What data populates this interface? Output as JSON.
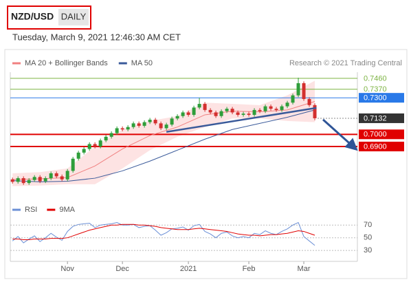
{
  "header": {
    "symbol": "NZD/USD",
    "period": "DAILY",
    "timestamp": "Tuesday, March 9, 2021 12:46:30 AM CET"
  },
  "chart_data": [
    {
      "type": "candlestick",
      "source": "Research © 2021 Trading Central",
      "categories": [
        null,
        null,
        null,
        null,
        null,
        null,
        null,
        null,
        null,
        null,
        "Nov",
        null,
        null,
        null,
        null,
        null,
        null,
        null,
        null,
        null,
        "Dec",
        null,
        null,
        null,
        null,
        null,
        null,
        null,
        null,
        null,
        null,
        null,
        "2021",
        null,
        null,
        null,
        null,
        null,
        null,
        null,
        null,
        null,
        null,
        "Feb",
        null,
        null,
        null,
        null,
        null,
        null,
        null,
        null,
        null,
        "Mar",
        null,
        null
      ],
      "open": [
        0.663,
        0.661,
        0.664,
        0.66,
        0.6625,
        0.665,
        0.6615,
        0.664,
        0.668,
        0.6655,
        0.663,
        0.67,
        0.68,
        0.685,
        0.688,
        0.692,
        0.69,
        0.695,
        0.698,
        0.701,
        0.705,
        0.704,
        0.706,
        0.709,
        0.707,
        0.71,
        0.712,
        0.709,
        0.705,
        0.708,
        0.713,
        0.715,
        0.718,
        0.716,
        0.722,
        0.725,
        0.72,
        0.718,
        0.715,
        0.719,
        0.721,
        0.718,
        0.716,
        0.717,
        0.716,
        0.72,
        0.719,
        0.723,
        0.721,
        0.72,
        0.723,
        0.726,
        0.732,
        0.742,
        0.729,
        0.724
      ],
      "high": [
        0.6645,
        0.6655,
        0.6655,
        0.664,
        0.6665,
        0.6665,
        0.6655,
        0.6695,
        0.6695,
        0.667,
        0.6715,
        0.6815,
        0.6865,
        0.6895,
        0.6935,
        0.6935,
        0.6965,
        0.6995,
        0.7025,
        0.7065,
        0.7065,
        0.7075,
        0.7105,
        0.7105,
        0.7115,
        0.7135,
        0.7135,
        0.7105,
        0.7095,
        0.7145,
        0.7165,
        0.7195,
        0.7195,
        0.7235,
        0.73,
        0.7265,
        0.7215,
        0.7195,
        0.7205,
        0.7225,
        0.7225,
        0.7195,
        0.7185,
        0.7185,
        0.7215,
        0.7215,
        0.7245,
        0.7245,
        0.7225,
        0.7245,
        0.7275,
        0.7335,
        0.7465,
        0.7435,
        0.7305,
        0.7255
      ],
      "low": [
        0.6595,
        0.6595,
        0.6585,
        0.6585,
        0.661,
        0.66,
        0.66,
        0.6625,
        0.664,
        0.6615,
        0.6615,
        0.6685,
        0.6785,
        0.6835,
        0.6865,
        0.6885,
        0.6885,
        0.6935,
        0.6965,
        0.6995,
        0.7025,
        0.7025,
        0.7045,
        0.7055,
        0.7055,
        0.7085,
        0.7075,
        0.7035,
        0.7035,
        0.7065,
        0.7115,
        0.7135,
        0.7145,
        0.7145,
        0.7205,
        0.7185,
        0.7165,
        0.7135,
        0.7135,
        0.7175,
        0.7165,
        0.7145,
        0.7145,
        0.7145,
        0.7145,
        0.7175,
        0.7175,
        0.7195,
        0.7185,
        0.7185,
        0.7215,
        0.7245,
        0.7305,
        0.7275,
        0.7225,
        0.7115
      ],
      "close": [
        0.661,
        0.664,
        0.66,
        0.6625,
        0.665,
        0.6615,
        0.664,
        0.668,
        0.6655,
        0.663,
        0.67,
        0.68,
        0.685,
        0.688,
        0.692,
        0.69,
        0.695,
        0.698,
        0.701,
        0.705,
        0.704,
        0.706,
        0.709,
        0.707,
        0.71,
        0.712,
        0.709,
        0.705,
        0.708,
        0.713,
        0.715,
        0.718,
        0.716,
        0.722,
        0.725,
        0.72,
        0.718,
        0.715,
        0.719,
        0.721,
        0.718,
        0.716,
        0.717,
        0.716,
        0.72,
        0.719,
        0.723,
        0.721,
        0.72,
        0.723,
        0.726,
        0.732,
        0.742,
        0.729,
        0.724,
        0.7132
      ],
      "colors": {
        "up": "#2e9e3a",
        "down": "#d32f2f"
      },
      "series": [
        {
          "name": "MA 20 + Bollinger Bands",
          "color": "#f08080",
          "band_color": "#fde3e3",
          "x": [
            0,
            5,
            10,
            15,
            20,
            25,
            30,
            35,
            40,
            45,
            50,
            55
          ],
          "values": [
            0.663,
            0.6635,
            0.6645,
            0.674,
            0.688,
            0.699,
            0.706,
            0.716,
            0.719,
            0.7185,
            0.72,
            0.727
          ],
          "upper": [
            0.668,
            0.669,
            0.672,
            0.69,
            0.704,
            0.711,
            0.715,
            0.726,
            0.725,
            0.724,
            0.732,
            0.744
          ],
          "lower": [
            0.6575,
            0.658,
            0.659,
            0.659,
            0.672,
            0.687,
            0.698,
            0.706,
            0.713,
            0.713,
            0.711,
            0.71
          ]
        },
        {
          "name": "MA 50",
          "color": "#3a5a9a",
          "x": [
            0,
            5,
            10,
            15,
            20,
            25,
            30,
            35,
            40,
            45,
            50,
            55
          ],
          "values": [
            0.662,
            0.661,
            0.6615,
            0.664,
            0.67,
            0.678,
            0.687,
            0.696,
            0.704,
            0.709,
            0.714,
            0.72
          ]
        }
      ],
      "levels": [
        {
          "value": 0.746,
          "label": "0.7460",
          "color": "#7cb342",
          "box": false
        },
        {
          "value": 0.737,
          "label": "0.7370",
          "color": "#7cb342",
          "box": false
        },
        {
          "value": 0.73,
          "label": "0.7300",
          "color": "#2979e8",
          "box": true
        },
        {
          "value": 0.7132,
          "label": "0.7132",
          "color": "#333333",
          "box": true,
          "dotted": true
        },
        {
          "value": 0.7,
          "label": "0.7000",
          "color": "#e00000",
          "box": true,
          "thick": true
        },
        {
          "value": 0.69,
          "label": "0.6900",
          "color": "#e00000",
          "box": true,
          "thick": true
        }
      ],
      "trendline": {
        "color": "#3a5a9a",
        "x": [
          28,
          55.3
        ],
        "values": [
          0.702,
          0.7217
        ]
      },
      "forecast_arrow": {
        "color": "#2f5597",
        "x": [
          56.5,
          62
        ],
        "values": [
          0.7121,
          0.6899
        ]
      },
      "xlim": [
        -0.4,
        62.75
      ],
      "ylim": [
        0.655,
        0.751
      ]
    },
    {
      "type": "line",
      "series": [
        {
          "name": "RSI",
          "color": "#6b8fd6",
          "values": [
            45,
            52,
            42,
            48,
            53,
            44,
            50,
            57,
            51,
            46,
            60,
            68,
            71,
            72,
            73,
            66,
            70,
            71,
            72,
            74,
            70,
            70,
            71,
            66,
            68,
            69,
            62,
            54,
            58,
            64,
            65,
            67,
            62,
            69,
            71,
            60,
            56,
            50,
            57,
            59,
            53,
            50,
            52,
            50,
            57,
            55,
            61,
            57,
            55,
            60,
            64,
            70,
            74,
            52,
            45,
            38
          ]
        },
        {
          "name": "9MA",
          "color": "#e00000",
          "values": [
            48,
            48,
            47,
            47,
            48,
            48,
            48,
            49,
            49,
            49,
            50,
            53,
            56,
            59,
            62,
            64,
            66,
            68,
            70,
            70,
            71,
            71,
            71,
            70,
            70,
            69,
            68,
            66,
            65,
            64,
            63,
            63,
            63,
            64,
            65,
            64,
            63,
            62,
            61,
            60,
            58,
            56,
            55,
            54,
            54,
            53,
            54,
            55,
            55,
            56,
            57,
            59,
            61,
            60,
            57,
            54
          ]
        }
      ],
      "ylim": [
        15,
        80
      ],
      "yticks": [
        70,
        50,
        30
      ],
      "grid": true
    }
  ]
}
